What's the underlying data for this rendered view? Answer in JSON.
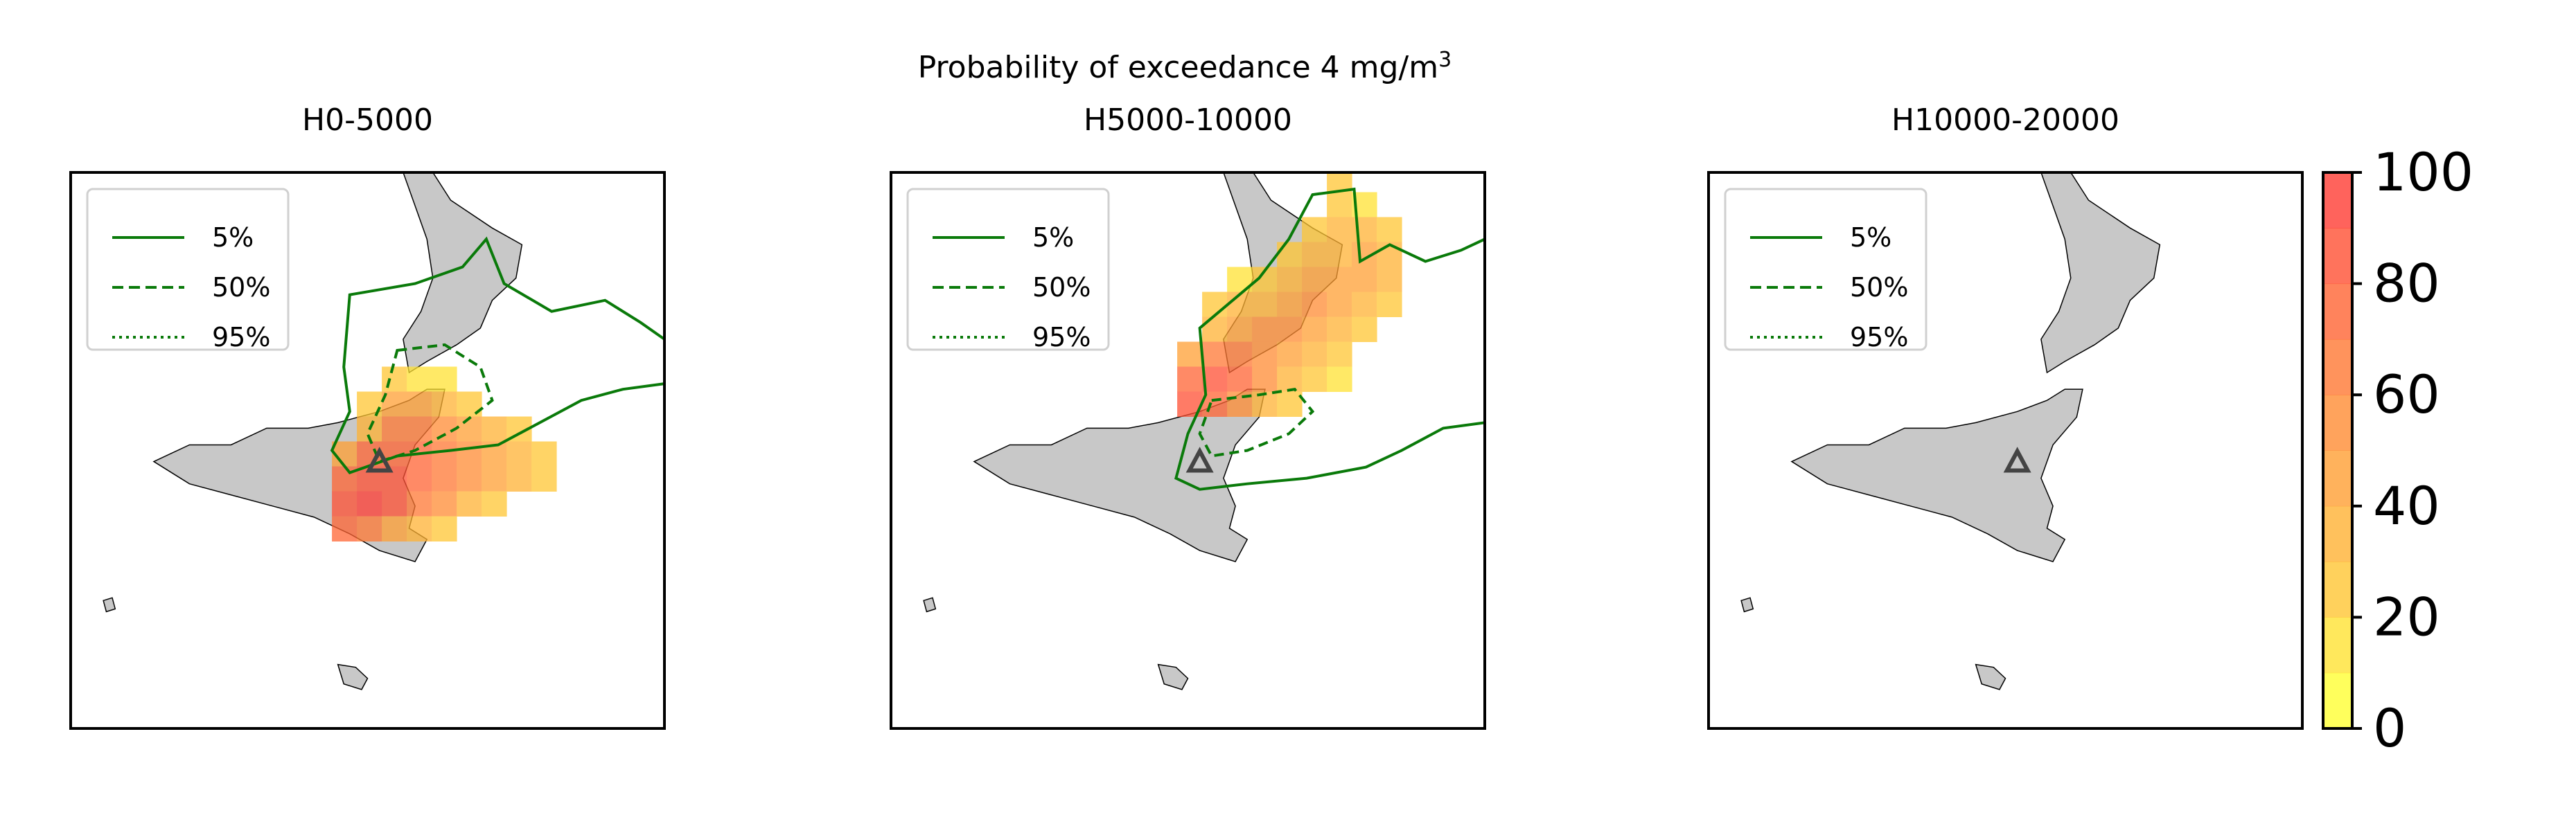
{
  "figure": {
    "suptitle": "Probability of exceedance 4 mg/m",
    "suptitle_sup": "3"
  },
  "chart_data": {
    "type": "heatmap",
    "title": "Probability of exceedance 4 mg/m3",
    "colorbar": {
      "min": 0,
      "max": 100,
      "ticks": [
        "0",
        "20",
        "40",
        "60",
        "80",
        "100"
      ],
      "levels": 10,
      "colors": [
        "#ffff33",
        "#ffe233",
        "#ffc633",
        "#ffb233",
        "#ff9f33",
        "#ff8c33",
        "#ff7833",
        "#ff6433",
        "#ff5033",
        "#ff3c33"
      ]
    },
    "legend": {
      "placement": "upper-left",
      "entries": [
        {
          "label": "5%",
          "style": "solid"
        },
        {
          "label": "50%",
          "style": "dashed"
        },
        {
          "label": "95%",
          "style": "dotted"
        }
      ]
    },
    "colors": {
      "contour": "#0a7a0a",
      "land": "#c8c8c8",
      "volcano_marker": "#444444"
    },
    "panels": [
      {
        "title": "H0-5000",
        "cells": [
          [
            3,
            5,
            20
          ],
          [
            4,
            5,
            15
          ],
          [
            5,
            5,
            10
          ],
          [
            2,
            6,
            25
          ],
          [
            3,
            6,
            45
          ],
          [
            4,
            6,
            40
          ],
          [
            5,
            6,
            30
          ],
          [
            6,
            6,
            20
          ],
          [
            2,
            7,
            35
          ],
          [
            3,
            7,
            60
          ],
          [
            4,
            7,
            65
          ],
          [
            5,
            7,
            55
          ],
          [
            6,
            7,
            45
          ],
          [
            7,
            7,
            30
          ],
          [
            8,
            7,
            20
          ],
          [
            1,
            8,
            45
          ],
          [
            2,
            8,
            70
          ],
          [
            3,
            8,
            75
          ],
          [
            4,
            8,
            70
          ],
          [
            5,
            8,
            60
          ],
          [
            6,
            8,
            55
          ],
          [
            7,
            8,
            45
          ],
          [
            8,
            8,
            35
          ],
          [
            9,
            8,
            20
          ],
          [
            1,
            9,
            70
          ],
          [
            2,
            9,
            85
          ],
          [
            3,
            9,
            85
          ],
          [
            4,
            9,
            75
          ],
          [
            5,
            9,
            65
          ],
          [
            6,
            9,
            55
          ],
          [
            7,
            9,
            45
          ],
          [
            8,
            9,
            35
          ],
          [
            9,
            9,
            25
          ],
          [
            1,
            10,
            85
          ],
          [
            2,
            10,
            90
          ],
          [
            3,
            10,
            80
          ],
          [
            4,
            10,
            65
          ],
          [
            5,
            10,
            50
          ],
          [
            6,
            10,
            35
          ],
          [
            7,
            10,
            25
          ],
          [
            1,
            11,
            75
          ],
          [
            2,
            11,
            65
          ],
          [
            3,
            11,
            45
          ],
          [
            4,
            11,
            30
          ],
          [
            5,
            11,
            20
          ]
        ],
        "has_50_contour": true
      },
      {
        "title": "H5000-10000",
        "cells": [
          [
            7,
            1,
            20
          ],
          [
            7,
            2,
            25
          ],
          [
            8,
            2,
            15
          ],
          [
            6,
            3,
            25
          ],
          [
            7,
            3,
            30
          ],
          [
            8,
            3,
            35
          ],
          [
            9,
            3,
            25
          ],
          [
            5,
            4,
            20
          ],
          [
            6,
            4,
            35
          ],
          [
            7,
            4,
            35
          ],
          [
            8,
            4,
            40
          ],
          [
            9,
            4,
            35
          ],
          [
            3,
            5,
            15
          ],
          [
            4,
            5,
            25
          ],
          [
            5,
            5,
            30
          ],
          [
            6,
            5,
            40
          ],
          [
            7,
            5,
            45
          ],
          [
            8,
            5,
            40
          ],
          [
            9,
            5,
            30
          ],
          [
            2,
            6,
            20
          ],
          [
            3,
            6,
            30
          ],
          [
            4,
            6,
            35
          ],
          [
            5,
            6,
            45
          ],
          [
            6,
            6,
            50
          ],
          [
            7,
            6,
            45
          ],
          [
            8,
            6,
            35
          ],
          [
            9,
            6,
            25
          ],
          [
            2,
            7,
            30
          ],
          [
            3,
            7,
            40
          ],
          [
            4,
            7,
            50
          ],
          [
            5,
            7,
            55
          ],
          [
            6,
            7,
            45
          ],
          [
            7,
            7,
            35
          ],
          [
            8,
            7,
            25
          ],
          [
            1,
            8,
            45
          ],
          [
            2,
            8,
            60
          ],
          [
            3,
            8,
            65
          ],
          [
            4,
            8,
            55
          ],
          [
            5,
            8,
            45
          ],
          [
            6,
            8,
            35
          ],
          [
            7,
            8,
            25
          ],
          [
            1,
            9,
            70
          ],
          [
            2,
            9,
            80
          ],
          [
            3,
            9,
            70
          ],
          [
            4,
            9,
            50
          ],
          [
            5,
            9,
            35
          ],
          [
            6,
            9,
            25
          ],
          [
            7,
            9,
            15
          ],
          [
            1,
            10,
            80
          ],
          [
            2,
            10,
            75
          ],
          [
            3,
            10,
            50
          ],
          [
            4,
            10,
            35
          ],
          [
            5,
            10,
            20
          ]
        ],
        "has_50_contour": true
      },
      {
        "title": "H10000-20000",
        "cells": [],
        "has_50_contour": false
      }
    ]
  }
}
